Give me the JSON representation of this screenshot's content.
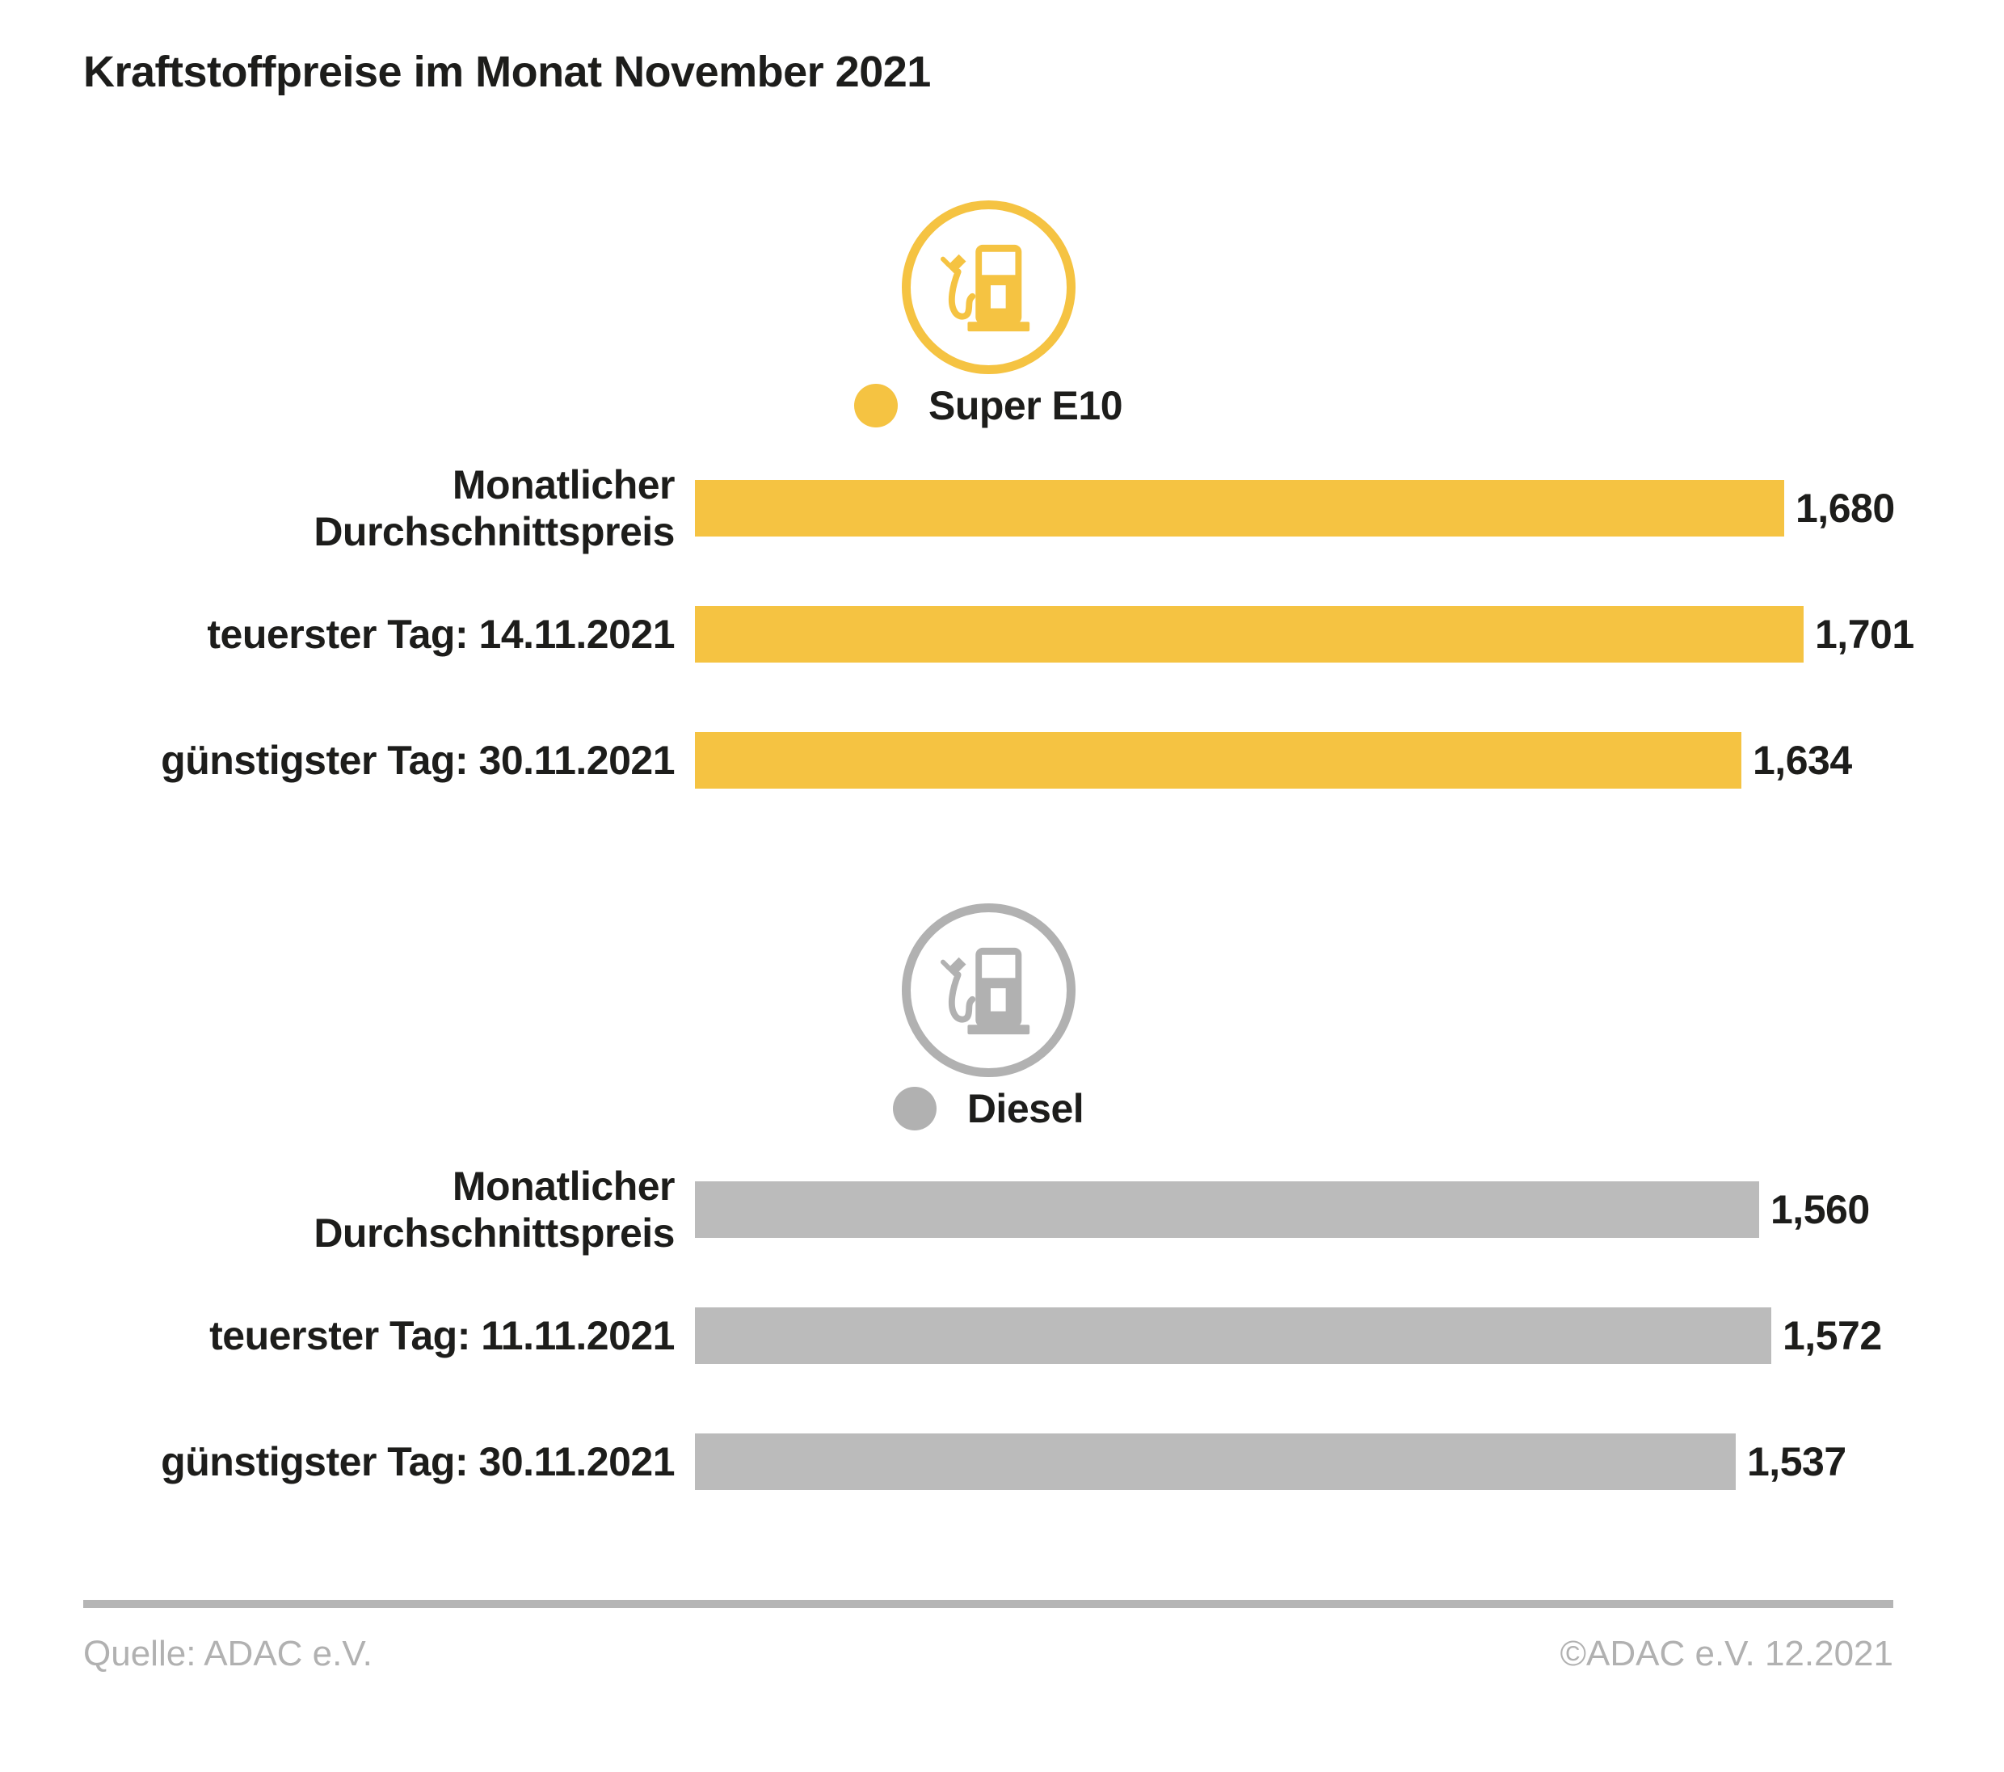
{
  "title": "Kraftstoffpreise im Monat November 2021",
  "footer": {
    "source": "Quelle: ADAC e.V.",
    "copyright": "©ADAC e.V. 12.2021"
  },
  "colors": {
    "super_e10_yellow": "#F5C342",
    "diesel_bar_gray": "#BBBBBB",
    "diesel_icon_gray": "#B1B1B1",
    "text_black": "#1D1D1B",
    "footer_gray": "#B1B1B1",
    "divider_gray": "#B5B5B5"
  },
  "chart_data": {
    "type": "bar",
    "title": "Kraftstoffpreise im Monat November 2021",
    "orientation": "horizontal",
    "axis": "none (value labels at bar ends, comma decimal format)",
    "groups": [
      {
        "name": "Super E10",
        "icon": "fuel-pump-icon",
        "color": "#F5C342",
        "icon_color": "#F5C342",
        "bars": [
          {
            "label": "Monatlicher Durchschnittspreis",
            "value": 1.68,
            "display": "1,680"
          },
          {
            "label": "teuerster Tag: 14.11.2021",
            "value": 1.701,
            "display": "1,701"
          },
          {
            "label": "günstigster Tag: 30.11.2021",
            "value": 1.634,
            "display": "1,634"
          }
        ],
        "scale": {
          "v1": 1.634,
          "px1": 1295,
          "v2": 1.701,
          "px2": 1372
        }
      },
      {
        "name": "Diesel",
        "icon": "fuel-pump-icon",
        "color": "#BBBBBB",
        "icon_color": "#B1B1B1",
        "bars": [
          {
            "label": "Monatlicher Durchschnittspreis",
            "value": 1.56,
            "display": "1,560"
          },
          {
            "label": "teuerster Tag: 11.11.2021",
            "value": 1.572,
            "display": "1,572"
          },
          {
            "label": "günstigster Tag: 30.11.2021",
            "value": 1.537,
            "display": "1,537"
          }
        ],
        "scale": {
          "v1": 1.537,
          "px1": 1288,
          "v2": 1.572,
          "px2": 1332
        }
      }
    ]
  }
}
